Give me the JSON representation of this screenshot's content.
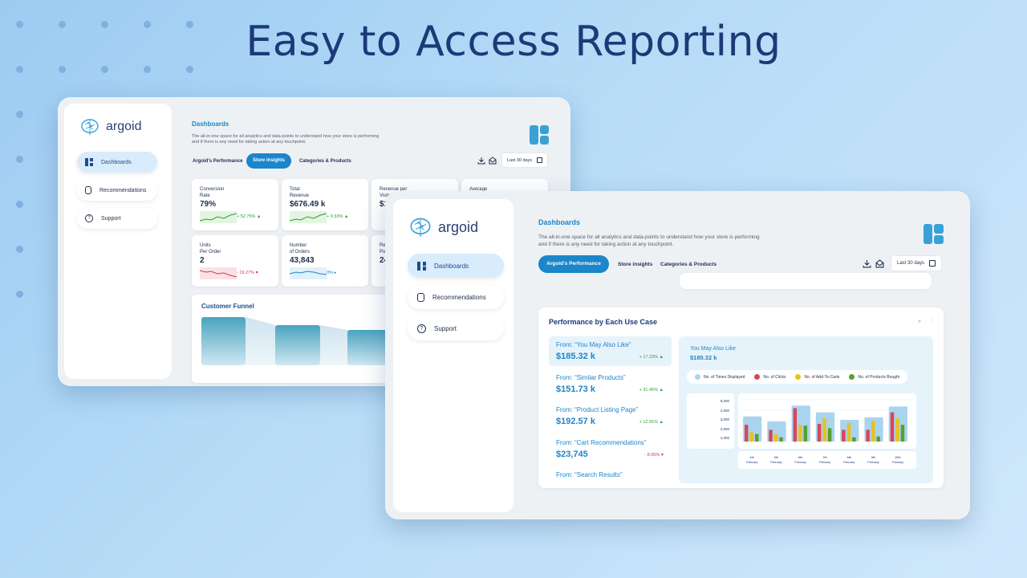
{
  "headline": "Easy to Access Reporting",
  "colors": {
    "accent": "#1b86c9",
    "brand_dark": "#1c3a78",
    "up": "#2b9c3a",
    "down": "#d23c4a",
    "chart_bg": "#bfe0f5"
  },
  "brand": {
    "name": "argoid"
  },
  "nav": {
    "dashboards": "Dashboards",
    "recommendations": "Recommendations",
    "support": "Support"
  },
  "dashboard": {
    "title": "Dashboards",
    "description_line1": "The all-in-one space for all analytics and data-points to understand how your store is performing",
    "description_line2": "and if there is any need for taking action at any touchpoint."
  },
  "tabs": {
    "performance": "Argoid's Performance",
    "store_insights": "Store insights",
    "categories": "Categories & Products"
  },
  "date_range": "Last 30 days",
  "metrics": [
    {
      "label1": "Conversion",
      "label2": "Rate",
      "value": "79%",
      "change": "+ 52.75%",
      "trend": "up"
    },
    {
      "label1": "Total",
      "label2": "Revenue",
      "value": "$676.49 k",
      "change": "+ 9.33%",
      "trend": "up"
    },
    {
      "label1": "Revenue per",
      "label2": "Visitor",
      "value": "$1",
      "change": "",
      "trend": "down"
    },
    {
      "label1": "Average",
      "label2": "",
      "value": "",
      "change": "",
      "trend": "up"
    },
    {
      "label1": "Units",
      "label2": "Per Order",
      "value": "2",
      "change": "- 19.27%",
      "trend": "down"
    },
    {
      "label1": "Number",
      "label2": "of Orders",
      "value": "43,843",
      "change": "0%",
      "trend": "neutral"
    },
    {
      "label1": "Re",
      "label2": "Pu",
      "value": "24",
      "change": "",
      "trend": "up"
    }
  ],
  "funnel": {
    "title": "Customer Funnel"
  },
  "performance": {
    "title": "Performance by Each Use Case",
    "items": [
      {
        "from": "From: “You May Also Like”",
        "amount": "$185.32 k",
        "change": "+ 17.23%",
        "trend": "up"
      },
      {
        "from": "From: “Similar Products”",
        "amount": "$151.73 k",
        "change": "+ 31.45%",
        "trend": "up"
      },
      {
        "from": "From: “Product Listing Page”",
        "amount": "$192.57 k",
        "change": "+ 12.91%",
        "trend": "up"
      },
      {
        "from": "From: “Cart Recommendations”",
        "amount": "$23,745",
        "change": "- 8.66%",
        "trend": "down"
      },
      {
        "from": "From: “Search Results”",
        "amount": "",
        "change": "",
        "trend": "up"
      }
    ],
    "detail_title": "You May Also Like",
    "detail_amount": "$185.32 k"
  },
  "chart_data": {
    "type": "bar",
    "title": "",
    "categories": [
      "4th February",
      "5th February",
      "6th February",
      "7th February",
      "8th February",
      "9th February",
      "10th February"
    ],
    "series": [
      {
        "name": "No. of Times Displayed",
        "color": "#a9d4f0",
        "values": [
          3000,
          2400,
          4300,
          3500,
          2600,
          2900,
          4200
        ]
      },
      {
        "name": "No. of Clicks",
        "color": "#d6475a",
        "values": [
          2000,
          1400,
          4000,
          2100,
          1400,
          1400,
          3500
        ]
      },
      {
        "name": "No. of Add-To-Carts",
        "color": "#e8c21c",
        "values": [
          1100,
          900,
          2000,
          2800,
          2200,
          2500,
          2800
        ]
      },
      {
        "name": "No. of Products Bought",
        "color": "#5a9e2e",
        "values": [
          900,
          500,
          1900,
          1600,
          500,
          600,
          2000
        ]
      }
    ],
    "y_ticks": [
      "5,000",
      "4,000",
      "3,000",
      "2,000",
      "1,000"
    ],
    "ylim": [
      0,
      5000
    ],
    "legend_position": "top"
  }
}
